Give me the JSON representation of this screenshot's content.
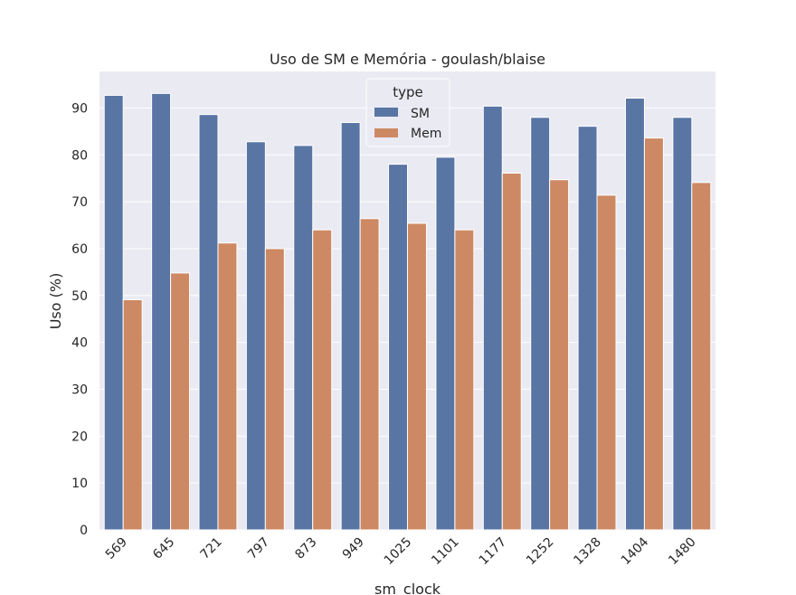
{
  "chart_data": {
    "type": "bar",
    "title": "Uso de SM e Memória - goulash/blaise",
    "xlabel": "sm_clock",
    "ylabel": "Uso (%)",
    "categories": [
      "569",
      "645",
      "721",
      "797",
      "873",
      "949",
      "1025",
      "1101",
      "1177",
      "1252",
      "1328",
      "1404",
      "1480"
    ],
    "series": [
      {
        "name": "SM",
        "color": "#5875a4",
        "values": [
          92.7,
          93.1,
          88.6,
          82.8,
          82.0,
          86.9,
          78.0,
          79.5,
          90.4,
          88.0,
          86.1,
          92.1,
          88.0
        ]
      },
      {
        "name": "Mem",
        "color": "#cc8963",
        "values": [
          49.1,
          54.8,
          61.2,
          60.0,
          64.0,
          66.4,
          65.4,
          64.0,
          76.1,
          74.7,
          71.4,
          83.6,
          74.1
        ]
      }
    ],
    "ylim": [
      0,
      97.8
    ],
    "yticks": [
      0,
      10,
      20,
      30,
      40,
      50,
      60,
      70,
      80,
      90
    ],
    "legend": {
      "title": "type",
      "position": "top-center"
    },
    "grid": true,
    "background": "#eaeaf2"
  }
}
